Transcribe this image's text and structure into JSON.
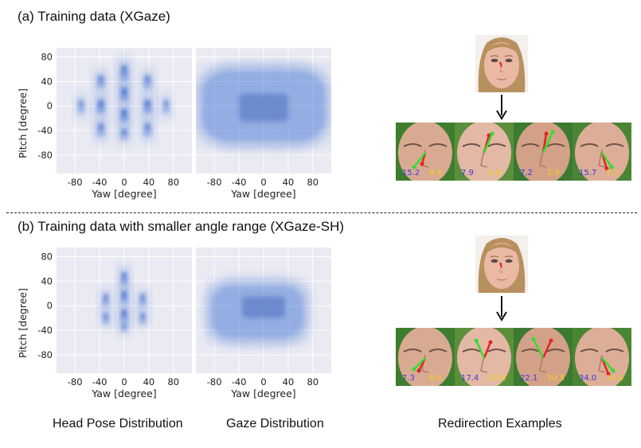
{
  "sections": [
    {
      "title": "(a) Training data (XGaze)",
      "head_ylabel": "Pitch [degree]",
      "head_xlabel": "Yaw [degree]",
      "gaze_xlabel": "Yaw [degree]",
      "overlays": [
        {
          "blue": "15.2",
          "yellow": "6.4"
        },
        {
          "blue": "7.9",
          "yellow": "6.9"
        },
        {
          "blue": "7.2",
          "yellow": "2.9"
        },
        {
          "blue": "15.7",
          "yellow": "2.3"
        }
      ]
    },
    {
      "title": "(b) Training data with smaller angle range (XGaze-SH)",
      "head_ylabel": "Pitch [degree]",
      "head_xlabel": "Yaw [degree]",
      "gaze_xlabel": "Yaw [degree]",
      "overlays": [
        {
          "blue": "7.3",
          "yellow": "6.8"
        },
        {
          "blue": "17.4",
          "yellow": "10.8"
        },
        {
          "blue": "22.1",
          "yellow": "10.5"
        },
        {
          "blue": "34.0",
          "yellow": "14.0"
        }
      ]
    }
  ],
  "captions": {
    "head": "Head Pose Distribution",
    "gaze": "Gaze Distribution",
    "redirect": "Redirection Examples"
  },
  "colors": {
    "panel_bg": "#eaeaf2",
    "density": "#3f6fd1",
    "overlay_blue": "#3d37e8",
    "overlay_yellow": "#f2d21a"
  },
  "chart_data": [
    {
      "type": "heatmap",
      "title": "Head Pose Distribution (XGaze)",
      "xlabel": "Yaw [degree]",
      "ylabel": "Pitch [degree]",
      "xlim": [
        -110,
        110
      ],
      "ylim": [
        -110,
        95
      ],
      "xticks": [
        -80,
        -40,
        0,
        40,
        80
      ],
      "yticks": [
        -80,
        -40,
        0,
        40,
        80
      ],
      "clusters": [
        {
          "x": -70,
          "y": 0,
          "sx": 6,
          "sy": 12,
          "w": 0.7
        },
        {
          "x": -38,
          "y": 40,
          "sx": 7,
          "sy": 12,
          "w": 0.8
        },
        {
          "x": -38,
          "y": 0,
          "sx": 7,
          "sy": 12,
          "w": 0.95
        },
        {
          "x": -38,
          "y": -38,
          "sx": 7,
          "sy": 12,
          "w": 0.8
        },
        {
          "x": 0,
          "y": 55,
          "sx": 7,
          "sy": 14,
          "w": 0.9
        },
        {
          "x": 0,
          "y": 20,
          "sx": 7,
          "sy": 12,
          "w": 1.0
        },
        {
          "x": 0,
          "y": -15,
          "sx": 7,
          "sy": 12,
          "w": 1.0
        },
        {
          "x": 0,
          "y": -45,
          "sx": 7,
          "sy": 10,
          "w": 0.8
        },
        {
          "x": 38,
          "y": 40,
          "sx": 7,
          "sy": 12,
          "w": 0.8
        },
        {
          "x": 38,
          "y": 0,
          "sx": 7,
          "sy": 12,
          "w": 0.95
        },
        {
          "x": 38,
          "y": -38,
          "sx": 7,
          "sy": 12,
          "w": 0.8
        },
        {
          "x": 68,
          "y": 0,
          "sx": 6,
          "sy": 12,
          "w": 0.7
        }
      ]
    },
    {
      "type": "heatmap",
      "title": "Gaze Distribution (XGaze)",
      "xlabel": "Yaw [degree]",
      "ylabel": "",
      "xlim": [
        -110,
        110
      ],
      "ylim": [
        -110,
        95
      ],
      "xticks": [
        -80,
        -40,
        0,
        40,
        80
      ],
      "yticks": [],
      "spread": {
        "yaw": [
          -110,
          110
        ],
        "pitch": [
          -70,
          70
        ]
      },
      "core": {
        "yaw": [
          -40,
          40
        ],
        "pitch": [
          -25,
          20
        ]
      }
    },
    {
      "type": "heatmap",
      "title": "Head Pose Distribution (XGaze-SH)",
      "xlabel": "Yaw [degree]",
      "ylabel": "Pitch [degree]",
      "xlim": [
        -110,
        110
      ],
      "ylim": [
        -110,
        95
      ],
      "xticks": [
        -80,
        -40,
        0,
        40,
        80
      ],
      "yticks": [
        -80,
        -40,
        0,
        40,
        80
      ],
      "clusters": [
        {
          "x": -30,
          "y": 10,
          "sx": 6,
          "sy": 11,
          "w": 0.8
        },
        {
          "x": -30,
          "y": -20,
          "sx": 6,
          "sy": 10,
          "w": 0.75
        },
        {
          "x": 0,
          "y": 45,
          "sx": 6,
          "sy": 12,
          "w": 0.9
        },
        {
          "x": 0,
          "y": 15,
          "sx": 6,
          "sy": 11,
          "w": 1.0
        },
        {
          "x": 0,
          "y": -15,
          "sx": 6,
          "sy": 11,
          "w": 1.0
        },
        {
          "x": 0,
          "y": -35,
          "sx": 6,
          "sy": 8,
          "w": 0.7
        },
        {
          "x": 30,
          "y": 10,
          "sx": 6,
          "sy": 11,
          "w": 0.8
        },
        {
          "x": 30,
          "y": -20,
          "sx": 6,
          "sy": 10,
          "w": 0.75
        }
      ]
    },
    {
      "type": "heatmap",
      "title": "Gaze Distribution (XGaze-SH)",
      "xlabel": "Yaw [degree]",
      "ylabel": "",
      "xlim": [
        -110,
        110
      ],
      "ylim": [
        -110,
        95
      ],
      "xticks": [
        -80,
        -40,
        0,
        40,
        80
      ],
      "yticks": [],
      "spread": {
        "yaw": [
          -95,
          75
        ],
        "pitch": [
          -65,
          45
        ]
      },
      "core": {
        "yaw": [
          -35,
          35
        ],
        "pitch": [
          -20,
          15
        ]
      }
    }
  ]
}
